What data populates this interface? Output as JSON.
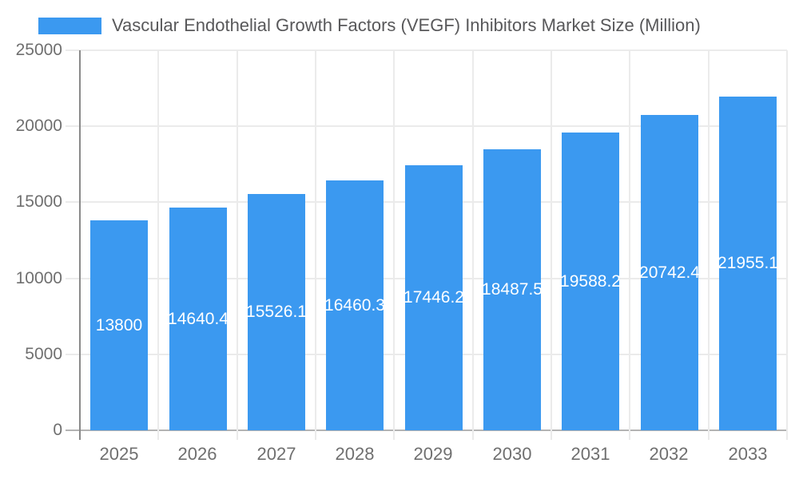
{
  "chart_data": {
    "type": "bar",
    "title": "Vascular Endothelial Growth Factors (VEGF) Inhibitors Market Size (Million)",
    "categories": [
      "2025",
      "2026",
      "2027",
      "2028",
      "2029",
      "2030",
      "2031",
      "2032",
      "2033"
    ],
    "values": [
      13800,
      14640.4,
      15526.1,
      16460.3,
      17446.2,
      18487.5,
      19588.2,
      20742.4,
      21955.1
    ],
    "series_name": "Vascular Endothelial Growth Factors (VEGF) Inhibitors Market Size (Million)",
    "xlabel": "",
    "ylabel": "",
    "ylim": [
      0,
      25000
    ],
    "yticks": [
      0,
      5000,
      10000,
      15000,
      20000,
      25000
    ],
    "grid": "horizontal and vertical category boundaries",
    "legend_position": "top-left",
    "data_labels": "inside bars, white, centered, clipped to bar width",
    "colors": {
      "bar": "#3b99f0",
      "title_text": "#58585a",
      "axis_text": "#6f6f6f",
      "gridline": "#ebebeb",
      "baseline": "#b3b3b3",
      "axis_line": "#8a8a8a"
    }
  }
}
